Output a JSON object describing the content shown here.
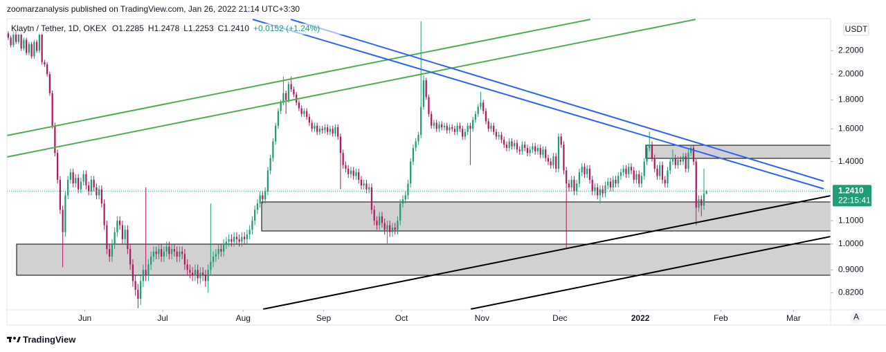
{
  "header": "zoomarzanalysis published on TradingView.com, Jan 26, 2022 21:14 UTC+3:30",
  "footer": "TradingView",
  "currency": "USDT",
  "scale_button": "A",
  "chart_data": {
    "type": "candlestick",
    "title": "Klaytn / Tether, 1D, OKEX",
    "legend_values": [
      "O1.2285",
      "H1.2478",
      "L1.2253",
      "C1.2410",
      "+0.0152 (+1.24%)"
    ],
    "up_color": "#1e9e74",
    "down_color": "#b01a61",
    "log_scale": true,
    "grid": false,
    "xlim": [
      0,
      317.3
    ],
    "ylim": [
      0.767,
      2.5
    ],
    "xticks": [
      {
        "value": 30,
        "label": "Jun"
      },
      {
        "value": 60,
        "label": "Jul"
      },
      {
        "value": 91,
        "label": "Aug"
      },
      {
        "value": 122,
        "label": "Sep"
      },
      {
        "value": 152,
        "label": "Oct"
      },
      {
        "value": 183,
        "label": "Nov"
      },
      {
        "value": 213,
        "label": "Dec"
      },
      {
        "value": 244,
        "label": "2022"
      },
      {
        "value": 275,
        "label": "Feb"
      },
      {
        "value": 303,
        "label": "Mar"
      }
    ],
    "yticks": [
      {
        "value": 2.2,
        "label": "2.2000"
      },
      {
        "value": 2.0,
        "label": "2.0000"
      },
      {
        "value": 1.8,
        "label": "1.8000"
      },
      {
        "value": 1.6,
        "label": "1.6000"
      },
      {
        "value": 1.4,
        "label": "1.4000"
      },
      {
        "value": 1.1,
        "label": "1.1000"
      },
      {
        "value": 1.0,
        "label": "1.0000"
      },
      {
        "value": 0.9,
        "label": "0.9000"
      },
      {
        "value": 0.82,
        "label": "0.8200"
      }
    ],
    "last_price": {
      "value": 1.241,
      "label": "1.2410"
    },
    "countdown": "22:15:41",
    "open": [
      2.36,
      2.32,
      2.25,
      2.38,
      2.28,
      2.35,
      2.22,
      2.3,
      2.18,
      2.26,
      2.15,
      2.28,
      2.2,
      2.35,
      2.1,
      2.08,
      2.0,
      1.85,
      1.62,
      1.45,
      1.3,
      1.15,
      1.05,
      1.22,
      1.3,
      1.34,
      1.28,
      1.31,
      1.25,
      1.29,
      1.33,
      1.27,
      1.24,
      1.3,
      1.26,
      1.22,
      1.25,
      1.18,
      1.08,
      0.98,
      0.95,
      1.0,
      1.05,
      1.1,
      1.08,
      1.02,
      1.06,
      0.98,
      0.92,
      0.86,
      0.83,
      0.8,
      0.86,
      0.9,
      0.88,
      0.92,
      0.95,
      0.97,
      0.96,
      0.98,
      0.95,
      0.97,
      0.99,
      0.96,
      0.98,
      0.97,
      0.95,
      0.97,
      0.96,
      0.92,
      0.9,
      0.89,
      0.88,
      0.9,
      0.87,
      0.89,
      0.88,
      0.86,
      0.9,
      0.93,
      0.95,
      0.96,
      0.98,
      0.97,
      1.0,
      1.01,
      1.02,
      1.01,
      1.03,
      1.02,
      1.01,
      1.03,
      1.02,
      1.04,
      1.06,
      1.1,
      1.15,
      1.18,
      1.22,
      1.2,
      1.24,
      1.35,
      1.42,
      1.52,
      1.62,
      1.72,
      1.78,
      1.85,
      1.8,
      1.92,
      1.88,
      1.84,
      1.78,
      1.74,
      1.7,
      1.72,
      1.68,
      1.64,
      1.6,
      1.62,
      1.58,
      1.6,
      1.59,
      1.61,
      1.58,
      1.6,
      1.57,
      1.61,
      1.55,
      1.45,
      1.38,
      1.36,
      1.33,
      1.35,
      1.32,
      1.34,
      1.3,
      1.27,
      1.28,
      1.25,
      1.26,
      1.15,
      1.1,
      1.08,
      1.12,
      1.09,
      1.06,
      1.08,
      1.05,
      1.07,
      1.06,
      1.1,
      1.18,
      1.2,
      1.22,
      1.28,
      1.4,
      1.48,
      1.52,
      1.56,
      1.75,
      1.95,
      1.82,
      1.7,
      1.62,
      1.64,
      1.6,
      1.63,
      1.61,
      1.62,
      1.59,
      1.61,
      1.6,
      1.58,
      1.62,
      1.6,
      1.55,
      1.58,
      1.62,
      1.6,
      1.66,
      1.7,
      1.75,
      1.78,
      1.72,
      1.65,
      1.6,
      1.62,
      1.58,
      1.55,
      1.56,
      1.53,
      1.5,
      1.48,
      1.52,
      1.49,
      1.51,
      1.47,
      1.46,
      1.5,
      1.48,
      1.45,
      1.47,
      1.49,
      1.46,
      1.48,
      1.44,
      1.47,
      1.42,
      1.4,
      1.38,
      1.43,
      1.36,
      1.55,
      1.5,
      1.35,
      1.28,
      1.26,
      1.3,
      1.24,
      1.28,
      1.34,
      1.37,
      1.33,
      1.36,
      1.3,
      1.24,
      1.26,
      1.22,
      1.25,
      1.23,
      1.27,
      1.29,
      1.26,
      1.3,
      1.28,
      1.32,
      1.34,
      1.36,
      1.33,
      1.37,
      1.35,
      1.3,
      1.33,
      1.28,
      1.32,
      1.4,
      1.48,
      1.5,
      1.42,
      1.36,
      1.32,
      1.38,
      1.3,
      1.28,
      1.35,
      1.4,
      1.42,
      1.38,
      1.41,
      1.4,
      1.43,
      1.36,
      1.45,
      1.48,
      1.4,
      1.16,
      1.2,
      1.17,
      1.2285
    ],
    "high": [
      2.38,
      2.34,
      2.4,
      2.4,
      2.37,
      2.37,
      2.32,
      2.32,
      2.28,
      2.28,
      2.3,
      2.3,
      2.37,
      2.37,
      2.12,
      2.1,
      2.02,
      1.87,
      1.64,
      1.47,
      1.32,
      1.17,
      1.24,
      1.32,
      1.36,
      1.36,
      1.33,
      1.33,
      1.31,
      1.35,
      1.35,
      1.29,
      1.32,
      1.32,
      1.28,
      1.27,
      1.27,
      1.2,
      1.1,
      1.0,
      1.02,
      1.07,
      1.12,
      1.12,
      1.1,
      1.08,
      1.08,
      1.0,
      0.94,
      0.88,
      0.85,
      0.88,
      0.92,
      1.26,
      0.94,
      0.97,
      0.99,
      0.99,
      1.0,
      1.0,
      0.99,
      1.01,
      1.01,
      1.0,
      1.0,
      0.99,
      0.99,
      0.99,
      0.98,
      0.94,
      0.92,
      0.91,
      0.92,
      0.92,
      0.91,
      0.91,
      0.9,
      0.92,
      1.18,
      0.97,
      0.98,
      1.0,
      1.0,
      1.02,
      1.03,
      1.04,
      1.04,
      1.05,
      1.05,
      1.04,
      1.05,
      1.05,
      1.06,
      1.08,
      1.12,
      1.17,
      1.2,
      1.24,
      1.24,
      1.26,
      1.37,
      1.44,
      1.54,
      1.64,
      1.74,
      1.8,
      1.98,
      1.87,
      1.94,
      1.98,
      1.9,
      1.86,
      1.8,
      1.76,
      1.74,
      1.74,
      1.7,
      1.66,
      1.64,
      1.64,
      1.62,
      1.62,
      1.63,
      1.63,
      1.62,
      1.62,
      1.63,
      1.63,
      1.57,
      1.47,
      1.4,
      1.38,
      1.37,
      1.37,
      1.36,
      1.36,
      1.32,
      1.3,
      1.3,
      1.28,
      1.28,
      1.17,
      1.12,
      1.14,
      1.14,
      1.11,
      1.1,
      1.1,
      1.09,
      1.09,
      1.12,
      1.2,
      1.22,
      1.24,
      1.3,
      1.42,
      1.5,
      1.54,
      1.58,
      2.48,
      1.99,
      1.97,
      1.84,
      1.72,
      1.66,
      1.66,
      1.65,
      1.65,
      1.64,
      1.64,
      1.63,
      1.63,
      1.62,
      1.64,
      1.64,
      1.62,
      1.6,
      1.64,
      1.64,
      1.68,
      1.72,
      1.77,
      1.86,
      1.8,
      1.74,
      1.67,
      1.64,
      1.64,
      1.6,
      1.58,
      1.58,
      1.55,
      1.52,
      1.54,
      1.54,
      1.53,
      1.53,
      1.49,
      1.52,
      1.52,
      1.5,
      1.49,
      1.51,
      1.51,
      1.5,
      1.5,
      1.49,
      1.49,
      1.44,
      1.42,
      1.45,
      1.45,
      1.57,
      1.57,
      1.52,
      1.37,
      1.3,
      1.32,
      1.32,
      1.3,
      1.36,
      1.39,
      1.39,
      1.38,
      1.38,
      1.32,
      1.28,
      1.28,
      1.27,
      1.27,
      1.29,
      1.31,
      1.31,
      1.32,
      1.32,
      1.34,
      1.36,
      1.38,
      1.38,
      1.39,
      1.39,
      1.37,
      1.35,
      1.35,
      1.34,
      1.42,
      1.5,
      1.58,
      1.52,
      1.44,
      1.38,
      1.4,
      1.4,
      1.32,
      1.37,
      1.42,
      1.47,
      1.44,
      1.43,
      1.43,
      1.45,
      1.45,
      1.47,
      1.5,
      1.5,
      1.42,
      1.22,
      1.22,
      1.36,
      1.2478
    ],
    "low": [
      2.3,
      2.23,
      2.23,
      2.26,
      2.26,
      2.2,
      2.2,
      2.16,
      2.16,
      2.13,
      2.13,
      2.18,
      2.18,
      2.08,
      2.06,
      1.98,
      1.83,
      1.6,
      1.43,
      1.28,
      1.13,
      0.91,
      1.03,
      1.2,
      1.28,
      1.26,
      1.26,
      1.23,
      1.23,
      1.27,
      1.25,
      1.22,
      1.22,
      1.24,
      1.2,
      1.2,
      1.16,
      1.06,
      0.96,
      0.93,
      0.93,
      0.98,
      1.03,
      1.06,
      1.0,
      1.0,
      0.96,
      0.9,
      0.84,
      0.81,
      0.77,
      0.78,
      0.84,
      0.86,
      0.86,
      0.9,
      0.93,
      0.94,
      0.94,
      0.93,
      0.93,
      0.95,
      0.94,
      0.94,
      0.95,
      0.93,
      0.93,
      0.94,
      0.9,
      0.88,
      0.87,
      0.86,
      0.86,
      0.85,
      0.85,
      0.86,
      0.84,
      0.82,
      0.88,
      0.91,
      0.93,
      0.94,
      0.95,
      0.95,
      0.98,
      0.99,
      0.99,
      0.99,
      1.0,
      0.99,
      0.99,
      1.0,
      1.0,
      1.02,
      1.04,
      1.08,
      1.13,
      1.16,
      1.18,
      1.18,
      1.22,
      1.33,
      1.4,
      1.5,
      1.6,
      1.7,
      1.76,
      1.7,
      1.78,
      1.86,
      1.82,
      1.76,
      1.72,
      1.68,
      1.68,
      1.66,
      1.62,
      1.58,
      1.58,
      1.56,
      1.56,
      1.57,
      1.57,
      1.56,
      1.56,
      1.55,
      1.55,
      1.53,
      1.25,
      1.36,
      1.34,
      1.31,
      1.31,
      1.3,
      1.3,
      1.28,
      1.25,
      1.25,
      1.23,
      1.23,
      1.13,
      1.08,
      1.06,
      1.06,
      1.07,
      1.04,
      1.0,
      1.03,
      1.03,
      1.04,
      1.04,
      1.08,
      1.16,
      1.18,
      1.2,
      1.26,
      1.38,
      1.46,
      1.5,
      1.54,
      1.73,
      1.8,
      1.68,
      1.6,
      1.6,
      1.58,
      1.58,
      1.59,
      1.59,
      1.57,
      1.57,
      1.58,
      1.56,
      1.56,
      1.58,
      1.53,
      1.53,
      1.56,
      1.38,
      1.58,
      1.64,
      1.68,
      1.73,
      1.7,
      1.63,
      1.58,
      1.58,
      1.56,
      1.53,
      1.53,
      1.51,
      1.48,
      1.46,
      1.46,
      1.47,
      1.47,
      1.45,
      1.44,
      1.44,
      1.46,
      1.43,
      1.43,
      1.45,
      1.44,
      1.44,
      1.42,
      1.42,
      1.4,
      1.38,
      1.36,
      1.36,
      1.34,
      1.34,
      1.48,
      1.33,
      0.98,
      1.24,
      1.24,
      1.22,
      1.22,
      1.26,
      1.32,
      1.31,
      1.31,
      1.28,
      1.22,
      1.22,
      1.2,
      1.18,
      1.21,
      1.21,
      1.25,
      1.24,
      1.24,
      1.26,
      1.26,
      1.3,
      1.32,
      1.31,
      1.31,
      1.33,
      1.28,
      1.28,
      1.26,
      1.26,
      1.3,
      1.38,
      1.46,
      1.4,
      1.34,
      1.3,
      1.3,
      1.28,
      1.26,
      1.26,
      1.33,
      1.38,
      1.36,
      1.36,
      1.38,
      1.38,
      1.34,
      1.34,
      1.43,
      1.38,
      1.08,
      1.14,
      1.12,
      1.15,
      1.2253
    ],
    "close": [
      2.32,
      2.25,
      2.38,
      2.28,
      2.35,
      2.22,
      2.3,
      2.18,
      2.26,
      2.15,
      2.28,
      2.2,
      2.35,
      2.1,
      2.08,
      2.0,
      1.85,
      1.62,
      1.45,
      1.3,
      1.15,
      1.05,
      1.22,
      1.3,
      1.34,
      1.28,
      1.31,
      1.25,
      1.29,
      1.33,
      1.27,
      1.24,
      1.3,
      1.26,
      1.22,
      1.25,
      1.18,
      1.08,
      0.98,
      0.95,
      1.0,
      1.05,
      1.1,
      1.08,
      1.02,
      1.06,
      0.98,
      0.92,
      0.86,
      0.83,
      0.8,
      0.86,
      0.9,
      0.88,
      0.92,
      0.95,
      0.97,
      0.96,
      0.98,
      0.95,
      0.97,
      0.99,
      0.96,
      0.98,
      0.97,
      0.95,
      0.97,
      0.96,
      0.92,
      0.9,
      0.89,
      0.88,
      0.9,
      0.87,
      0.89,
      0.88,
      0.86,
      0.9,
      0.93,
      0.95,
      0.96,
      0.98,
      0.97,
      1.0,
      1.01,
      1.02,
      1.01,
      1.03,
      1.02,
      1.01,
      1.03,
      1.02,
      1.04,
      1.06,
      1.1,
      1.15,
      1.18,
      1.22,
      1.2,
      1.24,
      1.35,
      1.42,
      1.52,
      1.62,
      1.72,
      1.78,
      1.85,
      1.8,
      1.92,
      1.88,
      1.84,
      1.78,
      1.74,
      1.7,
      1.72,
      1.68,
      1.64,
      1.6,
      1.62,
      1.58,
      1.6,
      1.59,
      1.61,
      1.58,
      1.6,
      1.57,
      1.61,
      1.55,
      1.45,
      1.38,
      1.36,
      1.33,
      1.35,
      1.32,
      1.34,
      1.3,
      1.27,
      1.28,
      1.25,
      1.26,
      1.15,
      1.1,
      1.08,
      1.12,
      1.09,
      1.06,
      1.08,
      1.05,
      1.07,
      1.06,
      1.1,
      1.18,
      1.2,
      1.22,
      1.28,
      1.4,
      1.48,
      1.52,
      1.56,
      1.75,
      1.95,
      1.82,
      1.7,
      1.62,
      1.64,
      1.6,
      1.63,
      1.61,
      1.62,
      1.59,
      1.61,
      1.6,
      1.58,
      1.62,
      1.6,
      1.55,
      1.58,
      1.62,
      1.6,
      1.66,
      1.7,
      1.75,
      1.78,
      1.72,
      1.65,
      1.6,
      1.62,
      1.58,
      1.55,
      1.56,
      1.53,
      1.5,
      1.48,
      1.52,
      1.49,
      1.51,
      1.47,
      1.46,
      1.5,
      1.48,
      1.45,
      1.47,
      1.49,
      1.46,
      1.48,
      1.44,
      1.47,
      1.42,
      1.4,
      1.38,
      1.43,
      1.36,
      1.55,
      1.5,
      1.35,
      1.28,
      1.26,
      1.3,
      1.24,
      1.28,
      1.34,
      1.37,
      1.33,
      1.36,
      1.3,
      1.24,
      1.26,
      1.22,
      1.25,
      1.23,
      1.27,
      1.29,
      1.26,
      1.3,
      1.28,
      1.32,
      1.34,
      1.36,
      1.33,
      1.37,
      1.35,
      1.3,
      1.33,
      1.28,
      1.32,
      1.4,
      1.48,
      1.5,
      1.42,
      1.36,
      1.32,
      1.38,
      1.3,
      1.28,
      1.35,
      1.4,
      1.42,
      1.38,
      1.41,
      1.4,
      1.43,
      1.36,
      1.45,
      1.48,
      1.4,
      1.16,
      1.2,
      1.17,
      1.2285,
      1.241
    ]
  }
}
